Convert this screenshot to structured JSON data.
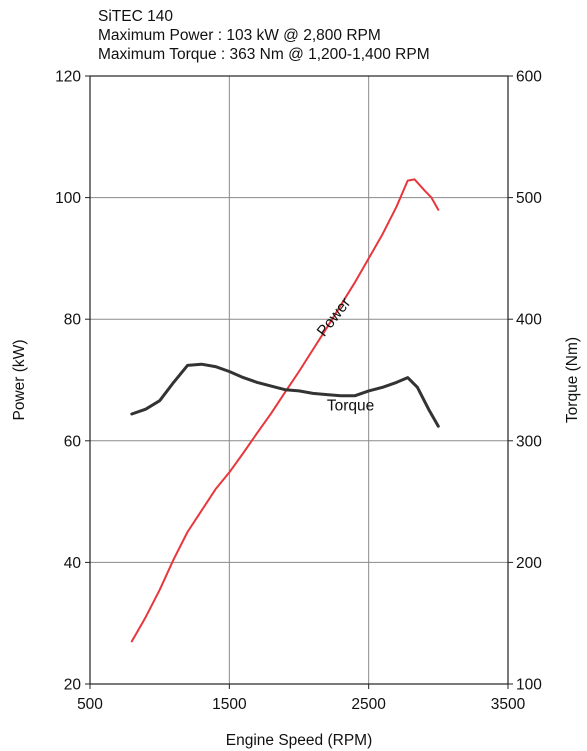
{
  "chart_data": {
    "type": "line",
    "title": "SiTEC 140",
    "subtitle_lines": [
      "Maximum Power : 103 kW @ 2,800 RPM",
      "Maximum Torque : 363 Nm @ 1,200-1,400 RPM"
    ],
    "xlabel": "Engine Speed (RPM)",
    "ylabel_left": "Power (kW)",
    "ylabel_right": "Torque (Nm)",
    "xlim": [
      500,
      3500
    ],
    "ylim_left": [
      20,
      120
    ],
    "ylim_right": [
      100,
      600
    ],
    "x_ticks": [
      "500",
      "1500",
      "2500",
      "3500"
    ],
    "y_ticks_left": [
      "20",
      "40",
      "60",
      "80",
      "100",
      "120"
    ],
    "y_ticks_right": [
      "100",
      "200",
      "300",
      "400",
      "500",
      "600"
    ],
    "grid": true,
    "legend": "none",
    "series": [
      {
        "name": "Power",
        "axis": "left",
        "color": "#e8373c",
        "x": [
          800,
          900,
          1000,
          1100,
          1200,
          1300,
          1400,
          1500,
          1600,
          1700,
          1800,
          1900,
          2000,
          2100,
          2200,
          2300,
          2400,
          2500,
          2600,
          2700,
          2780,
          2830,
          2900,
          2950,
          3000
        ],
        "y": [
          27,
          31,
          35.5,
          40.5,
          45,
          48.5,
          52,
          54.8,
          58,
          61.3,
          64.5,
          68,
          71.4,
          75,
          78.6,
          82.3,
          86,
          90,
          94,
          98.5,
          102.8,
          103,
          101.2,
          100,
          98
        ]
      },
      {
        "name": "Torque",
        "axis": "right",
        "color": "#333333",
        "x": [
          800,
          900,
          1000,
          1100,
          1200,
          1300,
          1400,
          1500,
          1600,
          1700,
          1800,
          1900,
          2000,
          2100,
          2200,
          2300,
          2400,
          2500,
          2600,
          2700,
          2780,
          2850,
          2930,
          3000
        ],
        "y": [
          322,
          326,
          333,
          348,
          362,
          363,
          361,
          357,
          352,
          348,
          345,
          342,
          341,
          339,
          338,
          337,
          337,
          341,
          344,
          348,
          352,
          344,
          326,
          312
        ]
      }
    ],
    "annotations": [
      {
        "text": "Power",
        "x": 2180,
        "y": 77,
        "axis": "left",
        "rotate": -52
      },
      {
        "text": "Torque",
        "x": 2200,
        "y": 65,
        "axis": "left",
        "rotate": 0
      }
    ]
  }
}
